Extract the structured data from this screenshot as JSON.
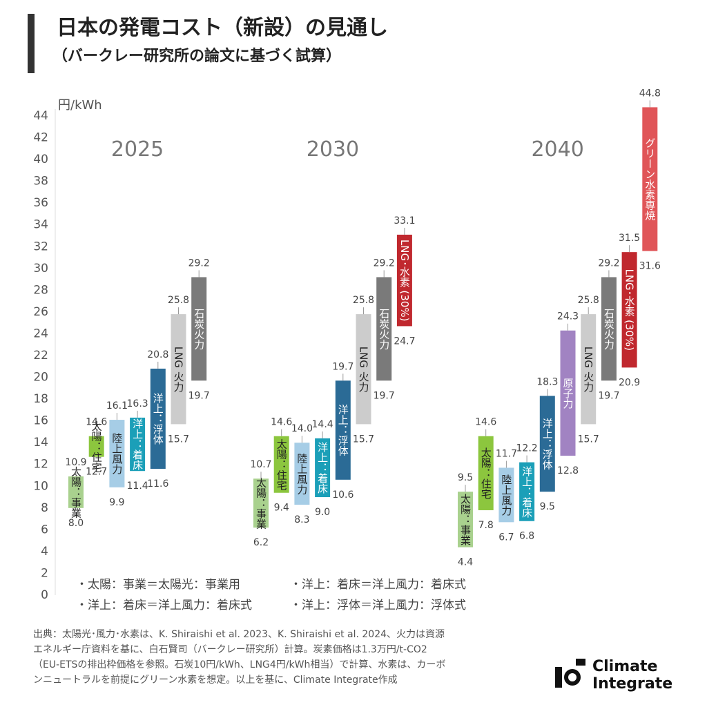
{
  "title": "日本の発電コスト（新設）の見通し",
  "subtitle": "（バークレー研究所の論文に基づく試算）",
  "chart_data": {
    "type": "range_bar",
    "y_label": "円/kWh",
    "ylim": [
      0,
      44
    ],
    "yticks": [
      0,
      2,
      4,
      6,
      8,
      10,
      12,
      14,
      16,
      18,
      20,
      22,
      24,
      26,
      28,
      30,
      32,
      34,
      36,
      38,
      40,
      42,
      44
    ],
    "categories": [
      "2025",
      "2030",
      "2040"
    ],
    "series": [
      {
        "name": "太陽：事業",
        "color": "#a9d18e",
        "low": [
          8.0,
          6.2,
          4.4
        ],
        "high": [
          10.9,
          10.7,
          9.5
        ],
        "low_labels": [
          "8.0",
          "6.2",
          "4.4"
        ],
        "high_labels": [
          "10.9",
          "10.7",
          "9.5"
        ]
      },
      {
        "name": "太陽：住宅",
        "color": "#8cc63e",
        "low": [
          12.7,
          9.4,
          7.8
        ],
        "high": [
          14.6,
          14.6,
          14.6
        ],
        "low_labels": [
          "12.7",
          "9.4",
          "7.8"
        ],
        "high_labels": [
          "14.6",
          "14.6",
          "14.6"
        ]
      },
      {
        "name": "陸上風力",
        "color": "#a6cde6",
        "low": [
          9.9,
          8.3,
          6.7
        ],
        "high": [
          16.1,
          14.0,
          11.7
        ],
        "low_labels": [
          "9.9",
          "8.3",
          "6.7"
        ],
        "high_labels": [
          "16.1",
          "14.0",
          "11.7"
        ]
      },
      {
        "name": "洋上：着床",
        "color": "#1b9fb8",
        "low": [
          11.4,
          9.0,
          6.8
        ],
        "high": [
          16.3,
          14.4,
          12.2
        ],
        "low_labels": [
          "11.4",
          "9.0",
          "6.8"
        ],
        "high_labels": [
          "16.3",
          "14.4",
          "12.2"
        ]
      },
      {
        "name": "洋上：浮体",
        "color": "#2b6b96",
        "low": [
          11.6,
          10.6,
          9.5
        ],
        "high": [
          20.8,
          19.7,
          18.3
        ],
        "low_labels": [
          "11.6",
          "10.6",
          "9.5"
        ],
        "high_labels": [
          "20.8",
          "19.7",
          "18.3"
        ]
      },
      {
        "name": "原子力",
        "color": "#a183c2",
        "low": [
          null,
          null,
          12.8
        ],
        "high": [
          null,
          null,
          24.3
        ],
        "low_labels": [
          null,
          null,
          "12.8"
        ],
        "high_labels": [
          null,
          null,
          "24.3"
        ]
      },
      {
        "name": "LNG 火力",
        "color": "#cccccc",
        "low": [
          15.7,
          15.7,
          15.7
        ],
        "high": [
          25.8,
          25.8,
          25.8
        ],
        "low_labels": [
          "15.7",
          "15.7",
          "15.7"
        ],
        "high_labels": [
          "25.8",
          "25.8",
          "25.8"
        ]
      },
      {
        "name": "石炭火力",
        "color": "#7a7a7a",
        "low": [
          19.7,
          19.7,
          19.7
        ],
        "high": [
          29.2,
          29.2,
          29.2
        ],
        "low_labels": [
          "19.7",
          "19.7",
          "19.7"
        ],
        "high_labels": [
          "29.2",
          "29.2",
          "29.2"
        ]
      },
      {
        "name": "LNG･水素 (30%)",
        "color": "#c0282e",
        "low": [
          null,
          24.7,
          20.9
        ],
        "high": [
          null,
          33.1,
          31.5
        ],
        "low_labels": [
          null,
          "24.7",
          "20.9"
        ],
        "high_labels": [
          null,
          "33.1",
          "31.5"
        ]
      },
      {
        "name": "グリーン水素専焼",
        "color": "#e05558",
        "low": [
          null,
          null,
          31.6
        ],
        "high": [
          null,
          null,
          44.8
        ],
        "low_labels": [
          null,
          null,
          "31.6"
        ],
        "high_labels": [
          null,
          null,
          "44.8"
        ]
      }
    ],
    "notes": [
      "・太陽：事業＝太陽光：事業用",
      "・洋上：着床＝洋上風力：着床式",
      "・洋上：着床＝洋上風力：着床式",
      "・洋上：浮体＝洋上風力：浮体式"
    ]
  },
  "source": [
    "出典：太陽光･風力･水素は、K. Shiraishi et al. 2023、K. Shiraishi et al. 2024、火力は資源",
    "エネルギー庁資料を基に、白石賢司（バークレー研究所）計算。炭素価格は1.3万円/t-CO2",
    "（EU-ETSの排出枠価格を参照。石炭10円/kWh、LNG4円/kWh相当）で計算、水素は、カーボ",
    "ンニュートラルを前提にグリーン水素を想定。以上を基に、Climate Integrate作成"
  ],
  "logo": [
    "Climate",
    "Integrate"
  ]
}
